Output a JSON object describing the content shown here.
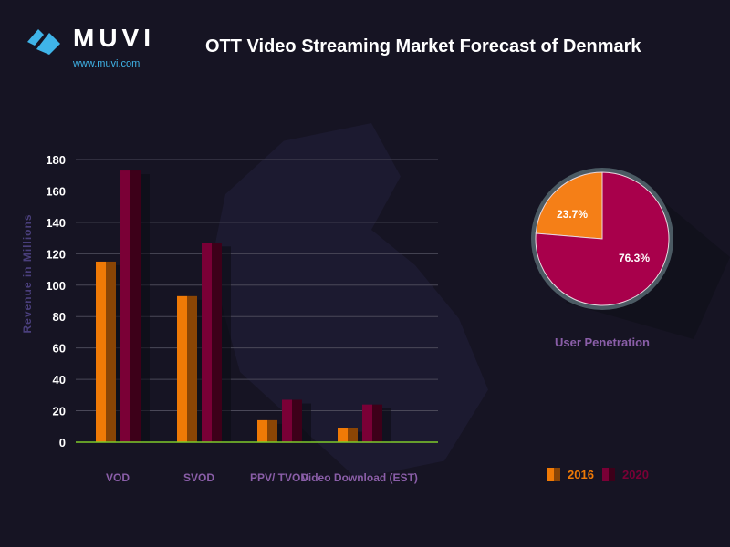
{
  "header": {
    "brand": "MUVI",
    "url": "www.muvi.com",
    "title": "OTT  Video Streaming Market Forecast of  Denmark"
  },
  "colors": {
    "s2016": "#f07a06",
    "s2016_dark": "#8a4505",
    "s2020": "#7a0036",
    "s2020_dark": "#3d0019",
    "pie_2016": "#f57f17",
    "pie_2020": "#a8004b",
    "axis": "#7ec92a",
    "brand": "#3fb4e8"
  },
  "chart_data": [
    {
      "type": "bar",
      "title": "",
      "xlabel": "",
      "ylabel": "Revenue in Millions",
      "ylim": [
        0,
        180
      ],
      "yticks": [
        0,
        20,
        40,
        60,
        80,
        100,
        120,
        140,
        160,
        180
      ],
      "grid": true,
      "categories": [
        "VOD",
        "SVOD",
        "PPV/ TVOD",
        "Video Download (EST)"
      ],
      "series": [
        {
          "name": "2016",
          "values": [
            115,
            93,
            14,
            9
          ]
        },
        {
          "name": "2020",
          "values": [
            173,
            127,
            27,
            24
          ]
        }
      ],
      "legend": {
        "position": "bottom-right",
        "entries": [
          "2016",
          "2020"
        ]
      }
    },
    {
      "type": "pie",
      "title": "User Penetration",
      "slices": [
        {
          "value": 23.7,
          "label": "23.7%"
        },
        {
          "value": 76.3,
          "label": "76.3%"
        }
      ]
    }
  ]
}
